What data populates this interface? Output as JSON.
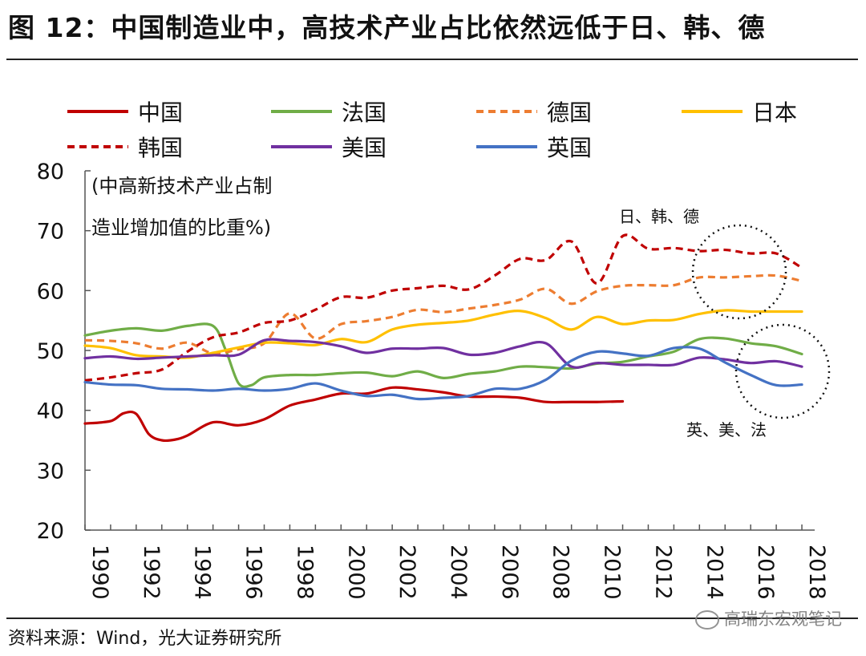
{
  "figure": {
    "title": "图 12：中国制造业中，高技术产业占比依然远低于日、韩、德",
    "source": "资料来源：Wind，光大证券研究所",
    "watermark": "高瑞东宏观笔记"
  },
  "chart_data": {
    "type": "line",
    "annotation_ylabel": [
      "(中高新技术产业占制",
      "造业增加值的比重%)"
    ],
    "annotations": [
      {
        "text": "日、韩、德",
        "anchor": "upper-right"
      },
      {
        "text": "英、美、法",
        "anchor": "lower-right"
      }
    ],
    "x_ticks": [
      "1990",
      "1992",
      "1994",
      "1996",
      "1998",
      "2000",
      "2002",
      "2004",
      "2006",
      "2008",
      "2010",
      "2012",
      "2014",
      "2016",
      "2018"
    ],
    "xlim": [
      1990,
      2018.5
    ],
    "ylim": [
      20,
      80
    ],
    "y_ticks": [
      "20",
      "30",
      "40",
      "50",
      "60",
      "70",
      "80"
    ],
    "grid": false,
    "legend_position": "top",
    "series": [
      {
        "name": "中国",
        "color": "#C00000",
        "dash": "solid",
        "x": [
          1990,
          1991,
          1991.5,
          1992,
          1992.5,
          1993,
          1993.5,
          1994,
          1995,
          1996,
          1997,
          1998,
          1999,
          2000,
          2001,
          2002,
          2003,
          2004,
          2005,
          2006,
          2007,
          2008,
          2009,
          2010,
          2011
        ],
        "y": [
          37.8,
          38.2,
          39.5,
          39.4,
          36,
          35,
          35.1,
          35.8,
          38,
          37.5,
          38.5,
          40.8,
          41.8,
          42.8,
          42.8,
          43.8,
          43.5,
          43,
          42.3,
          42.3,
          42.1,
          41.4,
          41.4,
          41.4,
          41.5
        ]
      },
      {
        "name": "法国",
        "color": "#70AD47",
        "dash": "solid",
        "x": [
          1990,
          1991,
          1992,
          1993,
          1994,
          1995,
          1995.5,
          1996,
          1996.5,
          1997,
          1998,
          1999,
          2000,
          2001,
          2002,
          2003,
          2004,
          2005,
          2006,
          2007,
          2008,
          2009,
          2010,
          2011,
          2012,
          2013,
          2014,
          2015,
          2016,
          2017,
          2018
        ],
        "y": [
          52.5,
          53.3,
          53.7,
          53.3,
          54.1,
          54.1,
          50,
          44.5,
          44.2,
          45.5,
          45.9,
          45.9,
          46.2,
          46.3,
          45.7,
          46.5,
          45.4,
          46.1,
          46.5,
          47.3,
          47.2,
          47,
          47.8,
          48.1,
          49,
          49.8,
          51.9,
          52,
          51.2,
          50.7,
          49.4
        ]
      },
      {
        "name": "德国",
        "color": "#ED7D31",
        "dash": "dashed",
        "x": [
          1990,
          1991,
          1992,
          1993,
          1994,
          1995,
          1996,
          1997,
          1998,
          1999,
          2000,
          2001,
          2002,
          2003,
          2004,
          2005,
          2006,
          2007,
          2008,
          2009,
          2010,
          2011,
          2012,
          2013,
          2014,
          2015,
          2016,
          2017,
          2018
        ],
        "y": [
          51.7,
          51.6,
          51.2,
          50.3,
          51.3,
          49.5,
          50.2,
          51.2,
          56.2,
          52,
          54.4,
          54.9,
          55.6,
          56.8,
          56.4,
          57,
          57.6,
          58.5,
          60.3,
          57.8,
          59.9,
          60.8,
          60.9,
          60.9,
          62.2,
          62.2,
          62.4,
          62.5,
          61.6
        ]
      },
      {
        "name": "日本",
        "color": "#FFC000",
        "dash": "solid",
        "x": [
          1990,
          1991,
          1992,
          1993,
          1994,
          1995,
          1996,
          1997,
          1998,
          1999,
          2000,
          2001,
          2002,
          2003,
          2004,
          2005,
          2006,
          2007,
          2008,
          2009,
          2010,
          2011,
          2012,
          2013,
          2014,
          2015,
          2016,
          2017,
          2018
        ],
        "y": [
          50.8,
          50.4,
          49.2,
          49,
          48.8,
          49.6,
          50.5,
          51.3,
          51.2,
          50.9,
          51.9,
          51.4,
          53.5,
          54.3,
          54.6,
          55,
          56,
          56.6,
          55.4,
          53.5,
          55.6,
          54.4,
          55,
          55.1,
          56.1,
          56.7,
          56.5,
          56.5,
          56.5
        ]
      },
      {
        "name": "韩国",
        "color": "#C00000",
        "dash": "dashed",
        "x": [
          1990,
          1991,
          1992,
          1993,
          1994,
          1995,
          1996,
          1997,
          1998,
          1999,
          2000,
          2001,
          2002,
          2003,
          2004,
          2005,
          2006,
          2007,
          2008,
          2009,
          2010,
          2011,
          2012,
          2013,
          2014,
          2015,
          2016,
          2017,
          2018
        ],
        "y": [
          45,
          45.5,
          46.2,
          46.8,
          49.8,
          52.2,
          53,
          54.6,
          55,
          56.8,
          58.9,
          58.8,
          60,
          60.4,
          60.8,
          60.2,
          62.5,
          65.3,
          65.1,
          68.2,
          61.2,
          69.1,
          67,
          67.1,
          66.6,
          66.8,
          66.2,
          66.2,
          63.8
        ]
      },
      {
        "name": "美国",
        "color": "#7030A0",
        "dash": "solid",
        "x": [
          1990,
          1991,
          1992,
          1993,
          1994,
          1995,
          1996,
          1997,
          1998,
          1999,
          2000,
          2001,
          2002,
          2003,
          2004,
          2005,
          2006,
          2007,
          2008,
          2009,
          2010,
          2011,
          2012,
          2013,
          2014,
          2015,
          2016,
          2017,
          2018
        ],
        "y": [
          48.7,
          49,
          48.6,
          48.8,
          49,
          49.2,
          49.3,
          51.7,
          51.6,
          51.4,
          50.7,
          49.6,
          50.3,
          50.3,
          50.4,
          49.3,
          49.6,
          50.7,
          51.2,
          47.3,
          47.9,
          47.6,
          47.6,
          47.6,
          48.8,
          48.5,
          47.9,
          48.2,
          47.3
        ]
      },
      {
        "name": "英国",
        "color": "#4472C4",
        "dash": "solid",
        "x": [
          1990,
          1991,
          1992,
          1993,
          1994,
          1995,
          1996,
          1997,
          1998,
          1999,
          2000,
          2001,
          2002,
          2003,
          2004,
          2005,
          2006,
          2007,
          2008,
          2009,
          2010,
          2011,
          2012,
          2013,
          2014,
          2015,
          2016,
          2017,
          2018
        ],
        "y": [
          44.7,
          44.3,
          44.2,
          43.6,
          43.5,
          43.3,
          43.6,
          43.3,
          43.6,
          44.5,
          43.3,
          42.4,
          42.6,
          41.9,
          42.1,
          42.4,
          43.6,
          43.6,
          45.1,
          48.3,
          49.8,
          49.5,
          49.1,
          50.4,
          50.3,
          48,
          45.9,
          44.2,
          44.3
        ]
      }
    ]
  }
}
